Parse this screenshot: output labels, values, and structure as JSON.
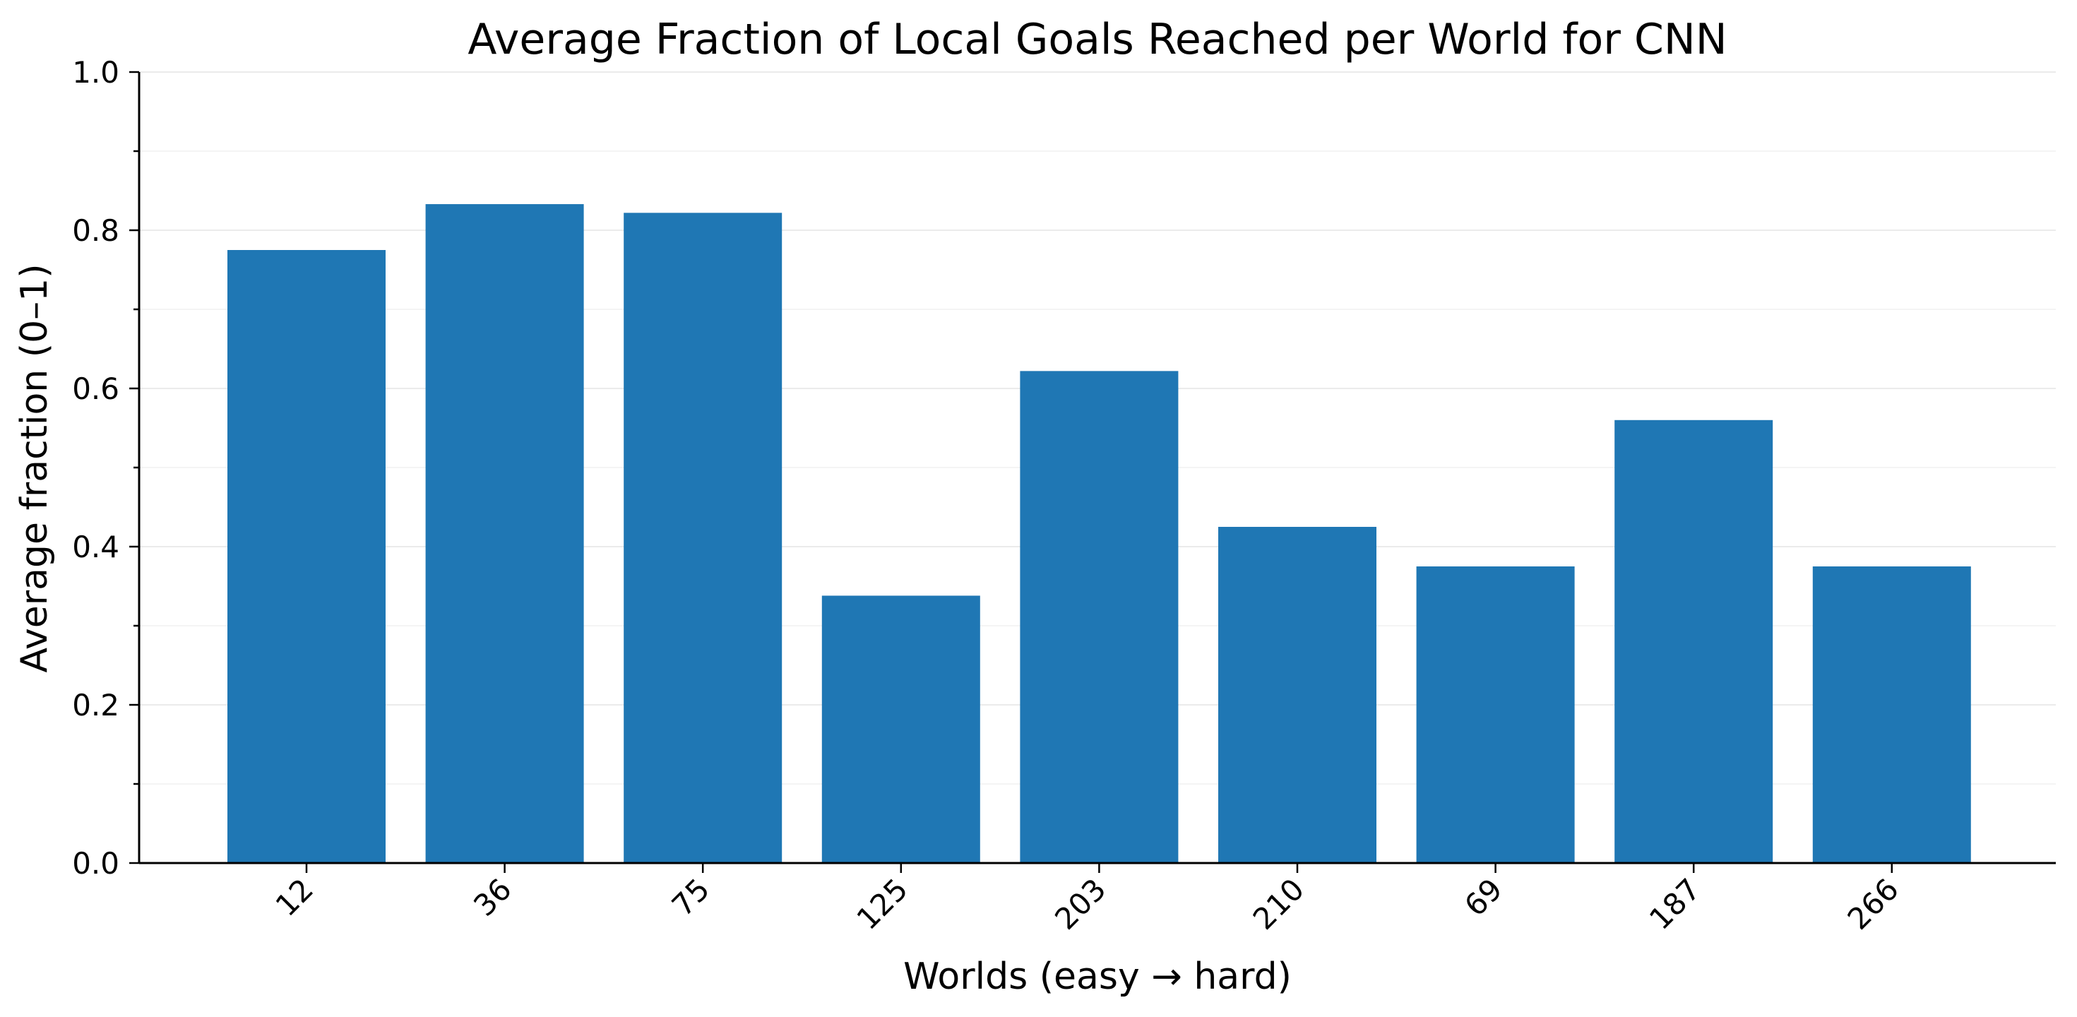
{
  "chart_data": {
    "type": "bar",
    "title": "Average Fraction of Local Goals Reached per World for CNN",
    "xlabel": "Worlds (easy → hard)",
    "ylabel": "Average fraction (0–1)",
    "categories": [
      "12",
      "36",
      "75",
      "125",
      "203",
      "210",
      "69",
      "187",
      "266"
    ],
    "values": [
      0.775,
      0.833,
      0.822,
      0.338,
      0.622,
      0.425,
      0.375,
      0.56,
      0.375
    ],
    "ylim": [
      0,
      1.0
    ],
    "yticks": [
      "0.0",
      "0.2",
      "0.4",
      "0.6",
      "0.8",
      "1.0"
    ],
    "grid": true,
    "legend": "none",
    "bar_color": "#1f77b4",
    "xtick_rotation": "45 degrees"
  }
}
